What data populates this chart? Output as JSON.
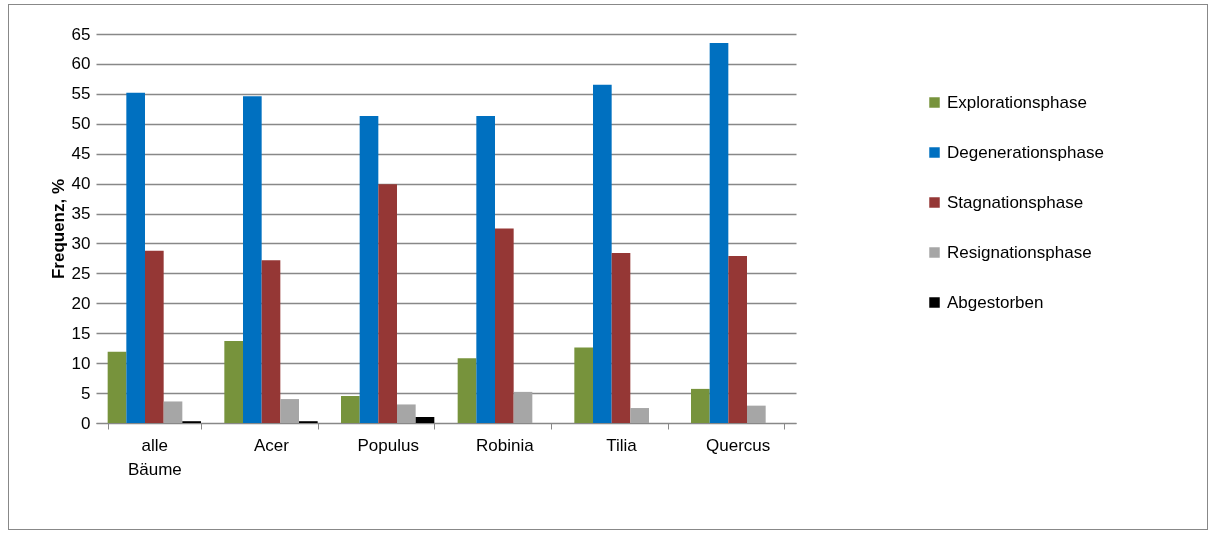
{
  "chart_data": {
    "type": "bar",
    "ylabel": "Frequenz, %",
    "categories": [
      "alle Bäume",
      "Acer",
      "Populus",
      "Robinia",
      "Tilia",
      "Quercus"
    ],
    "series": [
      {
        "name": "Explorationsphase",
        "color": "#77933c",
        "values": [
          11.9,
          13.7,
          4.5,
          10.8,
          12.6,
          5.7
        ]
      },
      {
        "name": "Degenerationsphase",
        "color": "#0070c0",
        "values": [
          55.2,
          54.6,
          51.3,
          51.3,
          56.5,
          63.5
        ]
      },
      {
        "name": "Stagnationsphase",
        "color": "#953735",
        "values": [
          28.8,
          27.2,
          39.9,
          32.5,
          28.4,
          27.9
        ]
      },
      {
        "name": "Resignationsphase",
        "color": "#a6a6a6",
        "values": [
          3.6,
          4.0,
          3.1,
          5.2,
          2.5,
          2.9
        ]
      },
      {
        "name": "Abgestorben",
        "color": "#000000",
        "values": [
          0.3,
          0.3,
          1.0,
          null,
          null,
          null
        ]
      }
    ],
    "ylim": [
      0,
      65
    ],
    "yticks": [
      0,
      5,
      10,
      15,
      20,
      25,
      30,
      35,
      40,
      45,
      50,
      55,
      60,
      65
    ],
    "grid": "y",
    "legend": "right"
  }
}
